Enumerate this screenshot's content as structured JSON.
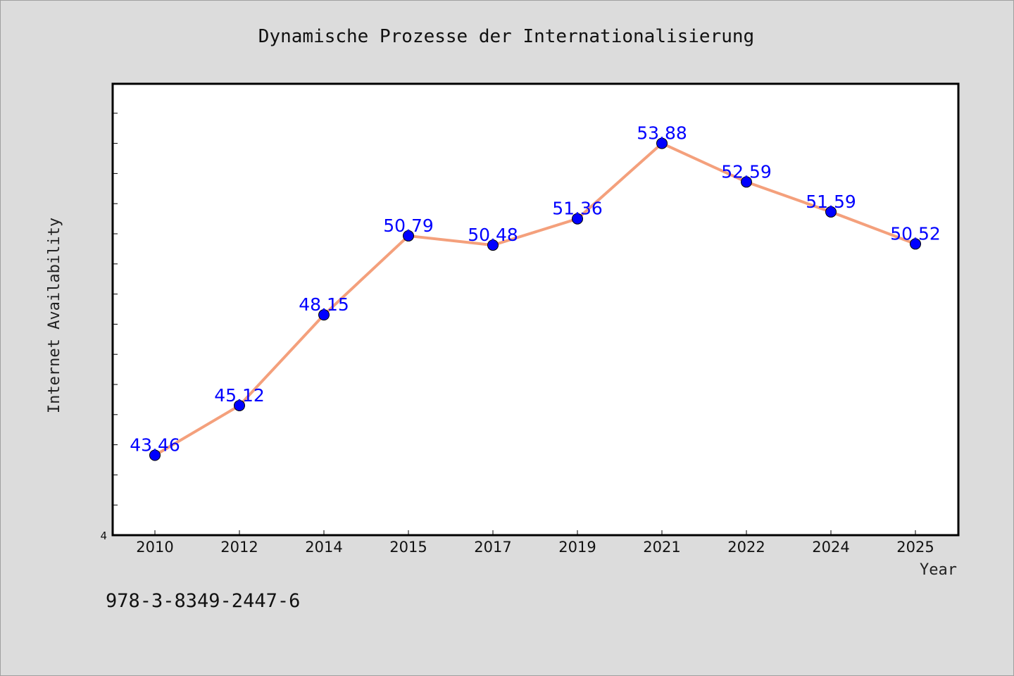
{
  "chart_data": {
    "type": "line",
    "title": "Dynamische Prozesse der Internationalisierung",
    "xlabel": "Year",
    "ylabel": "Internet Availability",
    "categories": [
      "2010",
      "2012",
      "2014",
      "2015",
      "2017",
      "2019",
      "2021",
      "2022",
      "2024",
      "2025"
    ],
    "series": [
      {
        "values": [
          43.46,
          45.12,
          48.15,
          50.79,
          50.48,
          51.36,
          53.88,
          52.59,
          51.59,
          50.52
        ],
        "labels": [
          "43.46",
          "45.12",
          "48.15",
          "50.79",
          "50.48",
          "51.36",
          "53.88",
          "52.59",
          "51.59",
          "50.52"
        ]
      }
    ],
    "ylim": [
      40.79,
      55.87
    ],
    "ytick_visible_label": "4",
    "grid": false,
    "line_color": "#f4a07c",
    "marker_color": "#0000ff",
    "label_color": "#0000ff"
  },
  "footer": {
    "isbn": "978-3-8349-2447-6"
  },
  "colors": {
    "background": "#dcdcdc",
    "plot_area": "#ffffff"
  }
}
